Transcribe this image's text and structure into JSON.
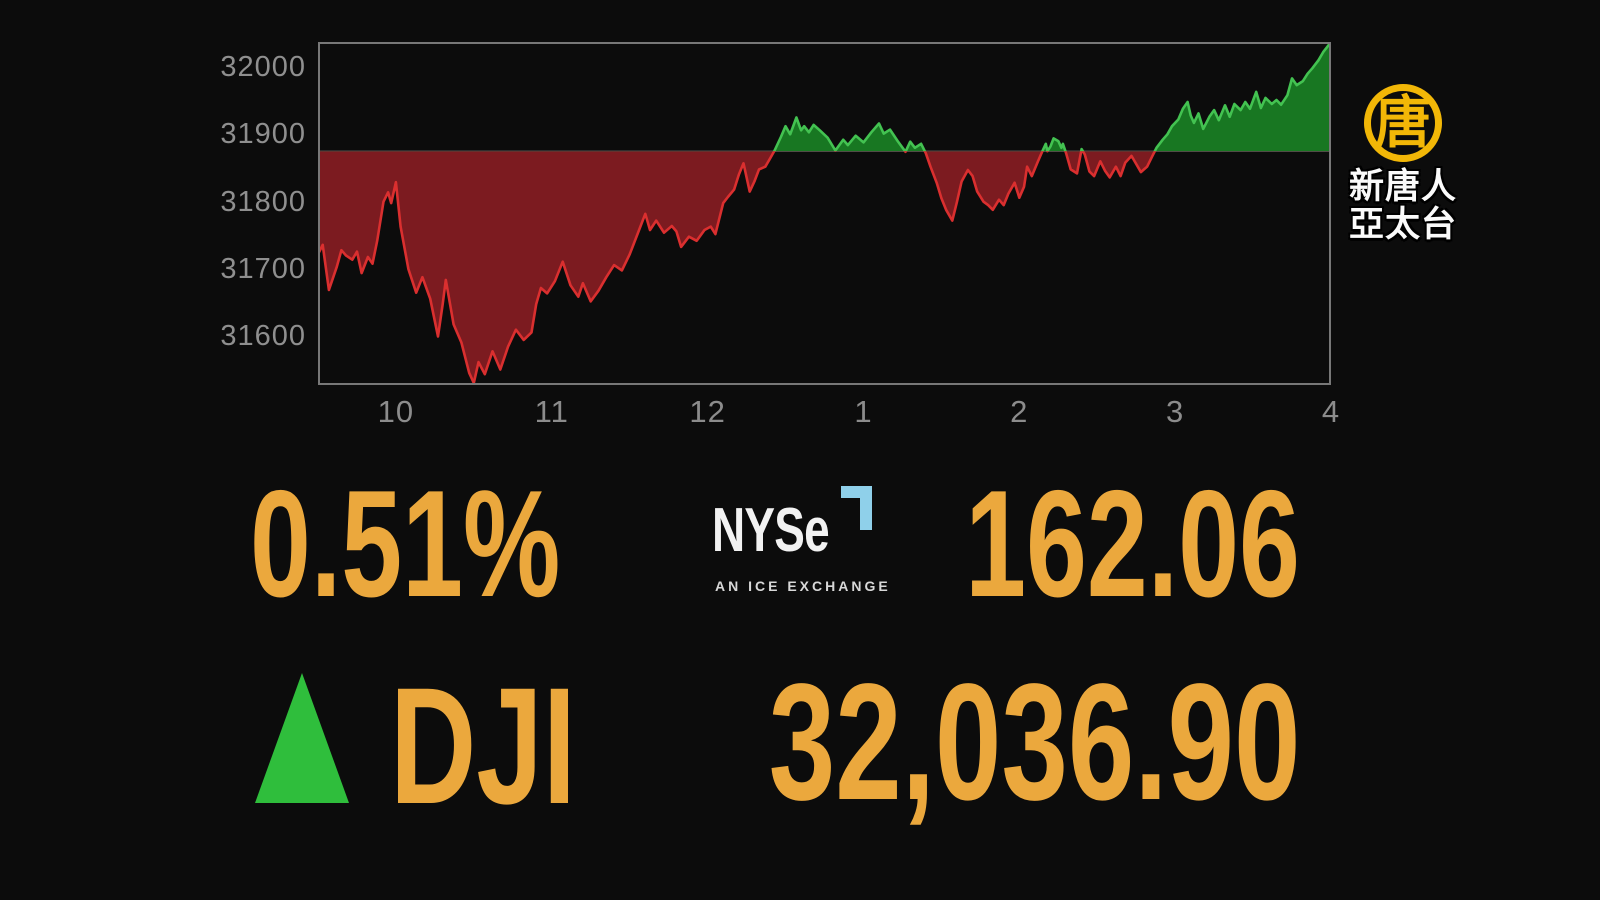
{
  "quote": {
    "symbol": "DJI",
    "change_percent": "0.51%",
    "change_points": "162.06",
    "last_value": "32,036.90",
    "direction": "up",
    "accent_color": "#EBA83D",
    "up_color": "#2FBE3C"
  },
  "nyse_logo": {
    "wordmark": "NYSe",
    "tagline": "AN ICE EXCHANGE",
    "bracket_color": "#8FD0EA"
  },
  "station_logo": {
    "glyph": "唐",
    "line1": "新唐人",
    "line2": "亞太台",
    "gold": "#F2B707"
  },
  "chart_data": {
    "type": "area",
    "title": "DJI intraday price vs previous close",
    "x_unit": "hour of trading day (9:30-16:00)",
    "x_range": [
      9.5,
      16
    ],
    "y_range": [
      31528,
      32037
    ],
    "baseline_previous_close": 31874.84,
    "grid": false,
    "y_ticks": [
      32000,
      31900,
      31800,
      31700,
      31600
    ],
    "x_ticks": [
      {
        "t": 10,
        "label": "10"
      },
      {
        "t": 11,
        "label": "11"
      },
      {
        "t": 12,
        "label": "12"
      },
      {
        "t": 13,
        "label": "1"
      },
      {
        "t": 14,
        "label": "2"
      },
      {
        "t": 15,
        "label": "3"
      },
      {
        "t": 16,
        "label": "4"
      }
    ],
    "colors": {
      "up_line": "#43C251",
      "up_fill": "#187722",
      "down_line": "#DA2F2F",
      "down_fill": "#7C1B20",
      "baseline": "#8a8a8a",
      "border": "#787878",
      "axis_text": "#8f8f8f"
    },
    "points": [
      [
        9.5,
        31722
      ],
      [
        9.53,
        31736
      ],
      [
        9.57,
        31669
      ],
      [
        9.62,
        31703
      ],
      [
        9.65,
        31728
      ],
      [
        9.68,
        31720
      ],
      [
        9.72,
        31714
      ],
      [
        9.75,
        31726
      ],
      [
        9.78,
        31694
      ],
      [
        9.82,
        31718
      ],
      [
        9.85,
        31708
      ],
      [
        9.88,
        31742
      ],
      [
        9.92,
        31800
      ],
      [
        9.95,
        31814
      ],
      [
        9.97,
        31798
      ],
      [
        10.0,
        31829
      ],
      [
        10.03,
        31763
      ],
      [
        10.08,
        31700
      ],
      [
        10.13,
        31665
      ],
      [
        10.17,
        31688
      ],
      [
        10.22,
        31656
      ],
      [
        10.27,
        31600
      ],
      [
        10.3,
        31648
      ],
      [
        10.32,
        31684
      ],
      [
        10.37,
        31618
      ],
      [
        10.42,
        31591
      ],
      [
        10.47,
        31546
      ],
      [
        10.5,
        31531
      ],
      [
        10.53,
        31562
      ],
      [
        10.57,
        31544
      ],
      [
        10.62,
        31578
      ],
      [
        10.67,
        31551
      ],
      [
        10.72,
        31585
      ],
      [
        10.77,
        31610
      ],
      [
        10.82,
        31595
      ],
      [
        10.87,
        31606
      ],
      [
        10.9,
        31648
      ],
      [
        10.93,
        31672
      ],
      [
        10.97,
        31664
      ],
      [
        11.02,
        31682
      ],
      [
        11.07,
        31711
      ],
      [
        11.12,
        31676
      ],
      [
        11.17,
        31659
      ],
      [
        11.2,
        31679
      ],
      [
        11.25,
        31652
      ],
      [
        11.3,
        31668
      ],
      [
        11.35,
        31688
      ],
      [
        11.4,
        31706
      ],
      [
        11.45,
        31698
      ],
      [
        11.5,
        31722
      ],
      [
        11.55,
        31752
      ],
      [
        11.6,
        31782
      ],
      [
        11.63,
        31758
      ],
      [
        11.67,
        31772
      ],
      [
        11.72,
        31754
      ],
      [
        11.77,
        31764
      ],
      [
        11.8,
        31756
      ],
      [
        11.83,
        31733
      ],
      [
        11.88,
        31748
      ],
      [
        11.93,
        31742
      ],
      [
        11.98,
        31758
      ],
      [
        12.02,
        31763
      ],
      [
        12.05,
        31752
      ],
      [
        12.1,
        31798
      ],
      [
        12.13,
        31807
      ],
      [
        12.17,
        31818
      ],
      [
        12.2,
        31840
      ],
      [
        12.23,
        31857
      ],
      [
        12.27,
        31815
      ],
      [
        12.3,
        31830
      ],
      [
        12.33,
        31848
      ],
      [
        12.37,
        31852
      ],
      [
        12.4,
        31864
      ],
      [
        12.43,
        31876
      ],
      [
        12.47,
        31896
      ],
      [
        12.5,
        31912
      ],
      [
        12.53,
        31900
      ],
      [
        12.57,
        31925
      ],
      [
        12.6,
        31906
      ],
      [
        12.62,
        31912
      ],
      [
        12.65,
        31903
      ],
      [
        12.68,
        31914
      ],
      [
        12.72,
        31906
      ],
      [
        12.77,
        31895
      ],
      [
        12.82,
        31876
      ],
      [
        12.87,
        31892
      ],
      [
        12.9,
        31884
      ],
      [
        12.95,
        31898
      ],
      [
        13.0,
        31888
      ],
      [
        13.05,
        31903
      ],
      [
        13.1,
        31916
      ],
      [
        13.13,
        31901
      ],
      [
        13.17,
        31907
      ],
      [
        13.22,
        31890
      ],
      [
        13.27,
        31874
      ],
      [
        13.3,
        31889
      ],
      [
        13.33,
        31880
      ],
      [
        13.37,
        31886
      ],
      [
        13.4,
        31872
      ],
      [
        13.43,
        31852
      ],
      [
        13.47,
        31828
      ],
      [
        13.5,
        31805
      ],
      [
        13.53,
        31788
      ],
      [
        13.57,
        31772
      ],
      [
        13.6,
        31800
      ],
      [
        13.63,
        31830
      ],
      [
        13.67,
        31847
      ],
      [
        13.7,
        31838
      ],
      [
        13.73,
        31815
      ],
      [
        13.77,
        31800
      ],
      [
        13.8,
        31795
      ],
      [
        13.83,
        31788
      ],
      [
        13.87,
        31803
      ],
      [
        13.9,
        31795
      ],
      [
        13.93,
        31812
      ],
      [
        13.97,
        31828
      ],
      [
        14.0,
        31806
      ],
      [
        14.03,
        31822
      ],
      [
        14.05,
        31852
      ],
      [
        14.08,
        31838
      ],
      [
        14.12,
        31860
      ],
      [
        14.15,
        31876
      ],
      [
        14.17,
        31886
      ],
      [
        14.18,
        31875
      ],
      [
        14.2,
        31882
      ],
      [
        14.22,
        31894
      ],
      [
        14.25,
        31890
      ],
      [
        14.27,
        31880
      ],
      [
        14.28,
        31886
      ],
      [
        14.3,
        31872
      ],
      [
        14.33,
        31848
      ],
      [
        14.37,
        31842
      ],
      [
        14.4,
        31878
      ],
      [
        14.42,
        31870
      ],
      [
        14.45,
        31845
      ],
      [
        14.48,
        31838
      ],
      [
        14.52,
        31860
      ],
      [
        14.55,
        31846
      ],
      [
        14.58,
        31836
      ],
      [
        14.62,
        31852
      ],
      [
        14.65,
        31838
      ],
      [
        14.68,
        31858
      ],
      [
        14.72,
        31868
      ],
      [
        14.75,
        31856
      ],
      [
        14.78,
        31844
      ],
      [
        14.82,
        31852
      ],
      [
        14.85,
        31866
      ],
      [
        14.88,
        31880
      ],
      [
        14.92,
        31892
      ],
      [
        14.95,
        31900
      ],
      [
        14.98,
        31912
      ],
      [
        15.02,
        31922
      ],
      [
        15.05,
        31938
      ],
      [
        15.08,
        31948
      ],
      [
        15.1,
        31928
      ],
      [
        15.12,
        31917
      ],
      [
        15.15,
        31931
      ],
      [
        15.18,
        31908
      ],
      [
        15.22,
        31926
      ],
      [
        15.25,
        31936
      ],
      [
        15.28,
        31921
      ],
      [
        15.32,
        31943
      ],
      [
        15.35,
        31926
      ],
      [
        15.38,
        31945
      ],
      [
        15.42,
        31936
      ],
      [
        15.45,
        31948
      ],
      [
        15.48,
        31938
      ],
      [
        15.52,
        31963
      ],
      [
        15.55,
        31939
      ],
      [
        15.58,
        31954
      ],
      [
        15.62,
        31945
      ],
      [
        15.65,
        31951
      ],
      [
        15.68,
        31944
      ],
      [
        15.72,
        31958
      ],
      [
        15.75,
        31983
      ],
      [
        15.78,
        31973
      ],
      [
        15.82,
        31979
      ],
      [
        15.85,
        31990
      ],
      [
        15.88,
        31998
      ],
      [
        15.92,
        32010
      ],
      [
        15.95,
        32022
      ],
      [
        16.0,
        32036.9
      ]
    ]
  }
}
